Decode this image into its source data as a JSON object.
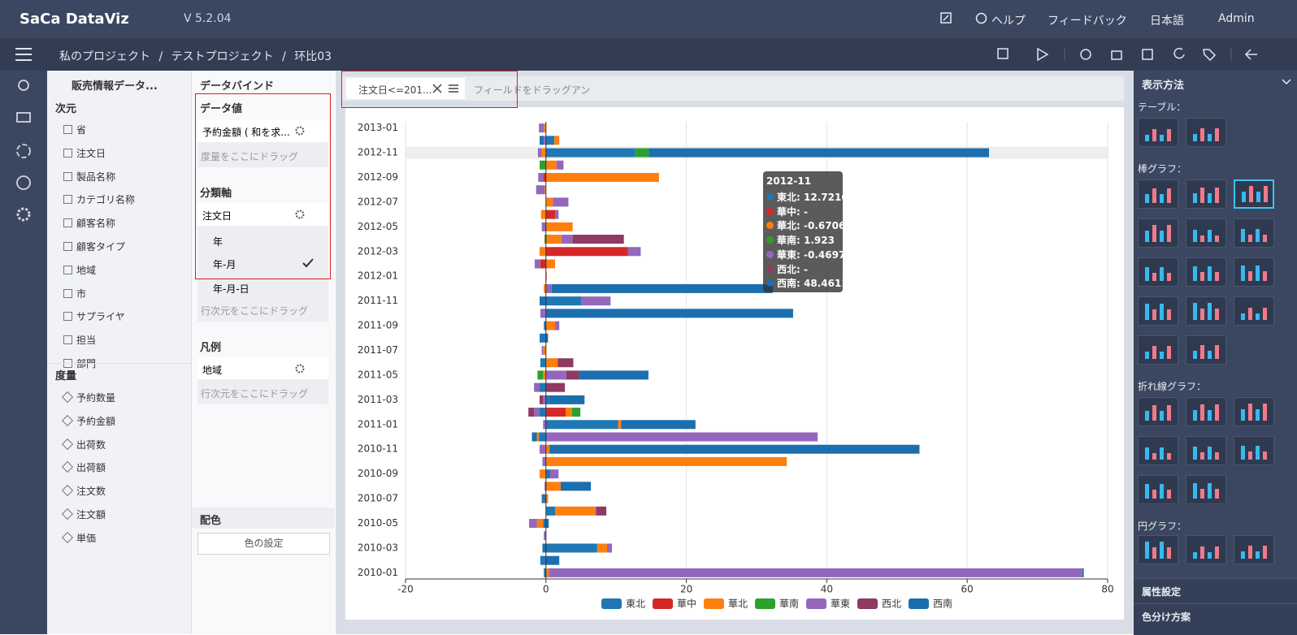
{
  "header": {
    "logo": "SaCa DataViz",
    "version": "V 5.2.04",
    "help": "ヘルプ",
    "feedback": "フィードバック",
    "language": "日本語",
    "user": "Admin"
  },
  "breadcrumb": {
    "items": [
      "私のプロジェクト",
      "テストプロジェクト",
      "环比03"
    ],
    "separator": "/"
  },
  "fields": {
    "dataset": "販売情報データ...",
    "dimensions_title": "次元",
    "dimensions": [
      "省",
      "注文日",
      "製品名称",
      "カテゴリ名称",
      "顧客名称",
      "顧客タイプ",
      "地域",
      "市",
      "サプライヤ",
      "担当",
      "部門"
    ],
    "measures_title": "度量",
    "measures": [
      "予約数量",
      "予約金額",
      "出荷数",
      "出荷額",
      "注文数",
      "注文額",
      "単価"
    ]
  },
  "binding": {
    "title": "データバインド",
    "value_title": "データ値",
    "value_field": "予約金額 ( 和を求...",
    "value_drop": "度量をここにドラッグ",
    "axis_title": "分類軸",
    "axis_field": "注文日",
    "axis_options": [
      "年",
      "年-月",
      "年-月-日"
    ],
    "axis_drop": "行次元をここにドラッグ",
    "legend_title": "凡例",
    "legend_field": "地域",
    "legend_drop": "行次元をここにドラッグ",
    "color_title": "配色",
    "color_button": "色の設定"
  },
  "filter": {
    "chip": "注文日<=201...",
    "placeholder": "フィールドをドラッグアン"
  },
  "chart_data": {
    "type": "bar",
    "orientation": "horizontal",
    "stacked": true,
    "grid": true,
    "legend": "bottom",
    "missing_label": "-",
    "categories": [
      "2010-01",
      null,
      "2010-03",
      null,
      "2010-05",
      null,
      "2010-07",
      null,
      "2010-09",
      null,
      "2010-11",
      null,
      "2011-01",
      null,
      "2011-03",
      null,
      "2011-05",
      null,
      "2011-07",
      null,
      "2011-09",
      null,
      "2011-11",
      null,
      "2012-01",
      null,
      "2012-03",
      null,
      "2012-05",
      null,
      "2012-07",
      null,
      "2012-09",
      null,
      "2012-11",
      null,
      "2013-01"
    ],
    "xlim": [
      -20,
      80
    ],
    "xticks": [
      -20,
      0,
      20,
      40,
      60,
      80
    ],
    "series": [
      {
        "name": "東北",
        "color": "#1f77b4",
        "values": [
          -0.3,
          -0.8,
          7.3,
          null,
          -0.4,
          1.3,
          -0.6,
          null,
          0.6,
          null,
          null,
          -1.0,
          10.3,
          -0.9,
          0.6,
          -0.9,
          null,
          -0.8,
          null,
          -0.9,
          -0.3,
          null,
          5.0,
          null,
          null,
          null,
          null,
          null,
          null,
          null,
          null,
          null,
          null,
          null,
          12.7216,
          1.2,
          null
        ]
      },
      {
        "name": "華中",
        "color": "#d62728",
        "values": [
          null,
          null,
          null,
          null,
          null,
          null,
          null,
          null,
          null,
          null,
          null,
          null,
          null,
          2.8,
          null,
          null,
          null,
          null,
          null,
          null,
          null,
          null,
          null,
          null,
          0.1,
          -0.8,
          11.7,
          null,
          null,
          1.3,
          null,
          null,
          -0.4,
          null,
          null,
          null,
          null
        ]
      },
      {
        "name": "華北",
        "color": "#ff7f0e",
        "values": [
          0.4,
          null,
          1.4,
          null,
          -0.9,
          5.7,
          0.3,
          2.1,
          -0.9,
          34.3,
          0.5,
          -0.3,
          0.4,
          0.9,
          null,
          null,
          -0.4,
          1.7,
          -0.4,
          null,
          1.3,
          null,
          null,
          -0.3,
          null,
          1.3,
          -0.9,
          2.2,
          3.8,
          -0.7,
          1.0,
          -0.2,
          16.1,
          1.5,
          -0.6706,
          0.7,
          -0.3
        ]
      },
      {
        "name": "華南",
        "color": "#2ca02c",
        "values": [
          null,
          null,
          null,
          null,
          null,
          null,
          null,
          null,
          null,
          null,
          null,
          null,
          null,
          1.2,
          null,
          null,
          -0.8,
          null,
          null,
          null,
          null,
          null,
          null,
          null,
          null,
          null,
          null,
          -0.2,
          null,
          null,
          null,
          null,
          null,
          -0.9,
          1.923,
          null,
          null
        ]
      },
      {
        "name": "華東",
        "color": "#9467bd",
        "values": [
          76,
          null,
          0.7,
          -0.3,
          -1.1,
          0.2,
          null,
          -0.2,
          1.2,
          -0.5,
          -0.9,
          38.7,
          -0.4,
          -0.8,
          -0.4,
          -0.8,
          2.9,
          null,
          -0.2,
          null,
          0.6,
          -0.8,
          4.2,
          0.8,
          null,
          -0.8,
          1.8,
          1.6,
          -0.6,
          0.5,
          2.2,
          -1.2,
          -0.7,
          1.0,
          -0.4697,
          -0.3,
          -0.7
        ]
      },
      {
        "name": "西北",
        "color": "#8e3a62",
        "values": [
          null,
          null,
          null,
          null,
          null,
          1.4,
          null,
          null,
          null,
          null,
          null,
          null,
          null,
          -0.8,
          -0.5,
          2.7,
          1.8,
          2.2,
          null,
          null,
          null,
          null,
          null,
          null,
          null,
          null,
          null,
          7.3,
          null,
          null,
          null,
          null,
          null,
          null,
          null,
          null,
          null
        ]
      },
      {
        "name": "西南",
        "color": "#1c6fae",
        "values": [
          0.2,
          1.9,
          -0.5,
          null,
          0.4,
          null,
          null,
          4.3,
          null,
          null,
          52.7,
          -0.7,
          10.6,
          null,
          4.9,
          null,
          9.9,
          null,
          null,
          0.3,
          null,
          35.2,
          -0.9,
          31.5,
          null,
          null,
          null,
          null,
          null,
          null,
          null,
          null,
          null,
          null,
          48.4611,
          -0.6,
          null
        ]
      }
    ]
  },
  "chart_types": {
    "title": "表示方法",
    "sections": [
      "テーブル：",
      "棒グラフ：",
      "折れ線グラフ：",
      "円グラフ："
    ],
    "attributes": "属性設定",
    "color_scheme": "色分け方案"
  }
}
